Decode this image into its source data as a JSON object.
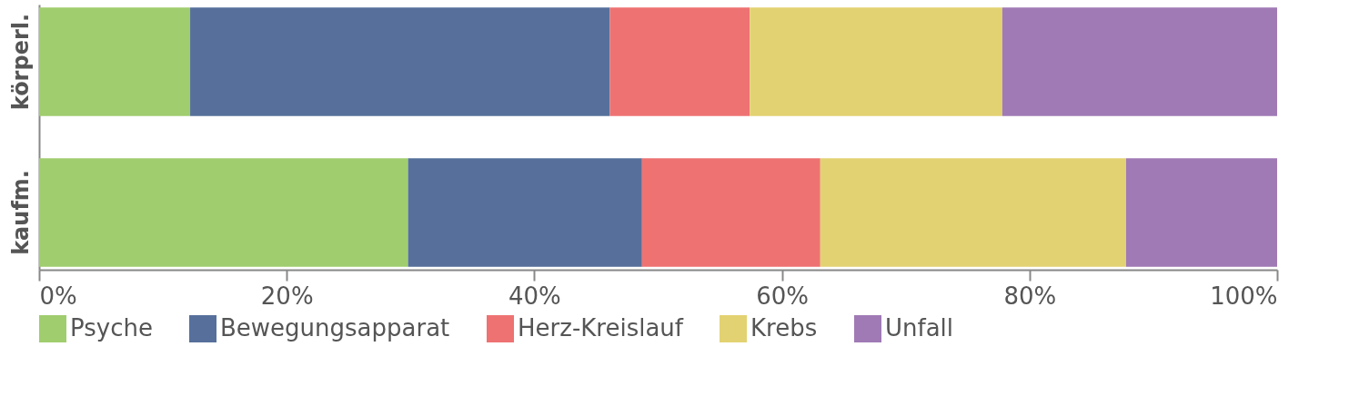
{
  "chart_data": {
    "type": "bar",
    "orientation": "horizontal",
    "stacked": true,
    "categories": [
      "körperl.",
      "kaufm."
    ],
    "series": [
      {
        "name": "Psyche",
        "color": "#a0cd6e",
        "values": [
          12.2,
          29.8
        ]
      },
      {
        "name": "Bewegungsapparat",
        "color": "#56709b",
        "values": [
          33.9,
          18.9
        ]
      },
      {
        "name": "Herz-Kreislauf",
        "color": "#ee7272",
        "values": [
          11.3,
          14.4
        ]
      },
      {
        "name": "Krebs",
        "color": "#e3d272",
        "values": [
          20.4,
          24.7
        ]
      },
      {
        "name": "Unfall",
        "color": "#a07ab5",
        "values": [
          22.2,
          12.2
        ]
      }
    ],
    "xlim": [
      0,
      100
    ],
    "xticks": [
      {
        "value": 0,
        "label": "0%"
      },
      {
        "value": 20,
        "label": "20%"
      },
      {
        "value": 40,
        "label": "40%"
      },
      {
        "value": 60,
        "label": "60%"
      },
      {
        "value": 80,
        "label": "80%"
      },
      {
        "value": 100,
        "label": "100%"
      }
    ],
    "legend": "bottom",
    "grid": false
  }
}
